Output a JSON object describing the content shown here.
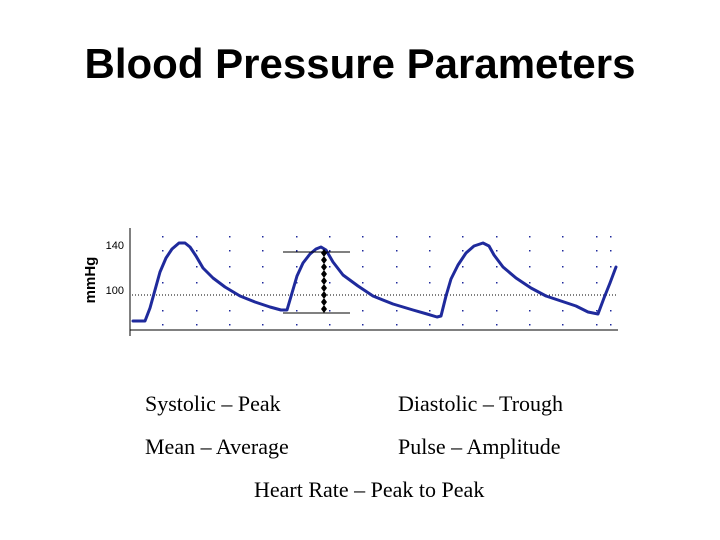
{
  "title": "Blood Pressure Parameters",
  "chart_data": {
    "type": "line",
    "ylabel": "mmHg",
    "yticks": [
      "140",
      "100"
    ],
    "colors": {
      "waveform": "#1f2a9c",
      "markers": "#000000",
      "grid": "#1f2a9c"
    }
  },
  "terms": {
    "systolic": "Systolic – Peak",
    "diastolic": "Diastolic – Trough",
    "mean": "Mean – Average",
    "pulse": "Pulse – Amplitude",
    "heart_rate": "Heart Rate – Peak to Peak"
  }
}
